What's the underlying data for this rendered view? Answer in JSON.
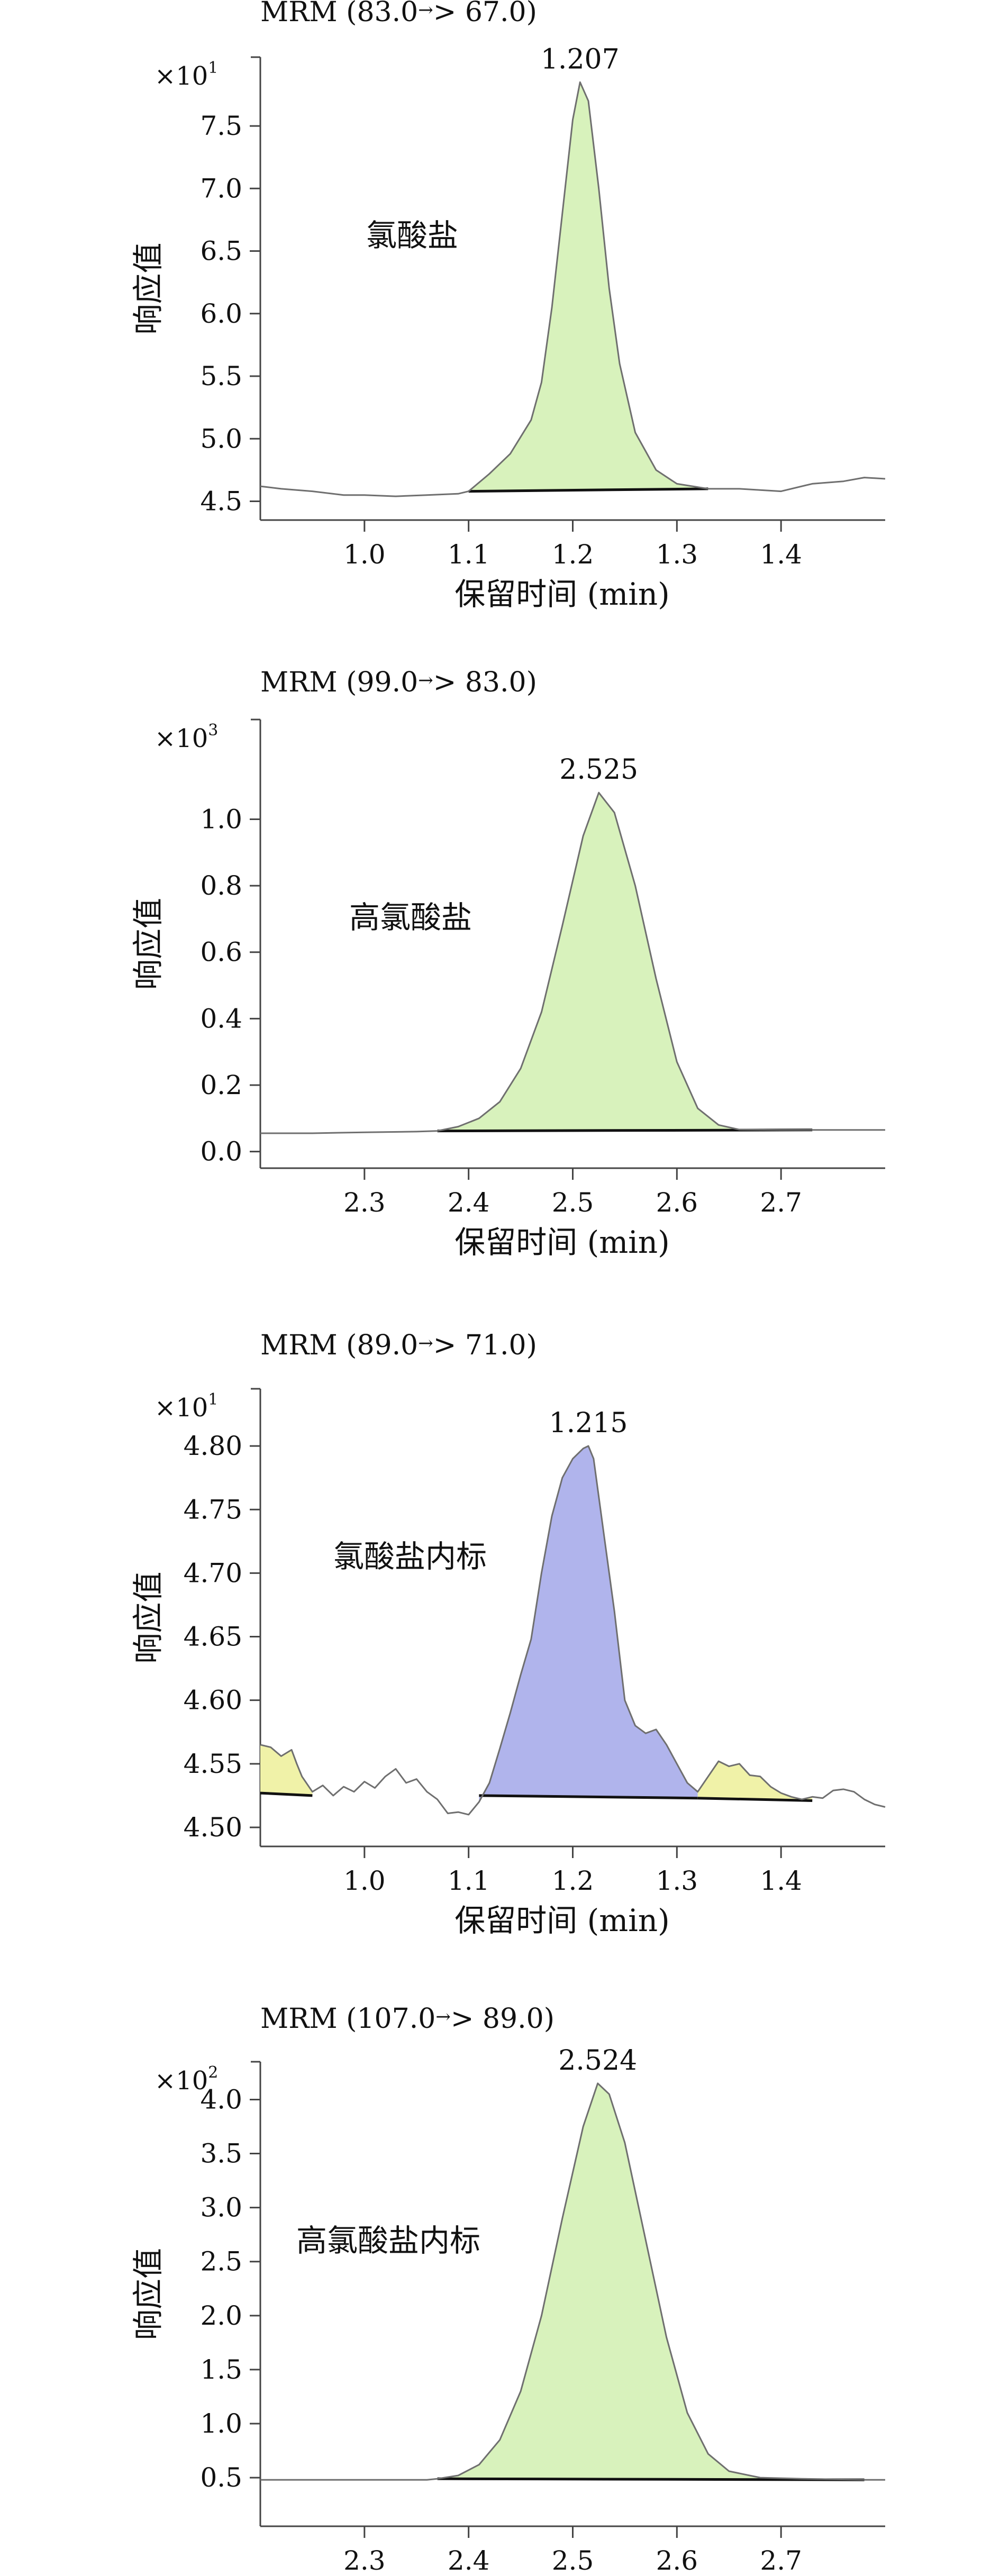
{
  "chart_data": [
    {
      "type": "line",
      "title": "MRM (83.0",
      "title_arrow": "→",
      "title_end": "> 67.0)",
      "multiplier_base": "×10",
      "multiplier_exp": "1",
      "ylabel": "响应值",
      "xlabel": "保留时间 (min)",
      "compound": "氯酸盐",
      "peak_label": "1.207",
      "xlim": [
        0.9,
        1.5
      ],
      "ylim": [
        4.35,
        8.05
      ],
      "xticks": [
        1.0,
        1.1,
        1.2,
        1.3,
        1.4
      ],
      "xtick_labels": [
        "1.0",
        "1.1",
        "1.2",
        "1.3",
        "1.4"
      ],
      "yticks": [
        4.5,
        5.0,
        5.5,
        6.0,
        6.5,
        7.0,
        7.5
      ],
      "ytick_labels": [
        "4.5",
        "5.0",
        "5.5",
        "6.0",
        "6.5",
        "7.0",
        "7.5"
      ],
      "trace": [
        [
          0.9,
          4.62
        ],
        [
          0.92,
          4.6
        ],
        [
          0.95,
          4.58
        ],
        [
          0.98,
          4.55
        ],
        [
          1.0,
          4.55
        ],
        [
          1.03,
          4.54
        ],
        [
          1.06,
          4.55
        ],
        [
          1.09,
          4.56
        ],
        [
          1.1,
          4.58
        ],
        [
          1.12,
          4.72
        ],
        [
          1.14,
          4.88
        ],
        [
          1.16,
          5.15
        ],
        [
          1.17,
          5.45
        ],
        [
          1.18,
          6.05
        ],
        [
          1.19,
          6.8
        ],
        [
          1.2,
          7.55
        ],
        [
          1.207,
          7.85
        ],
        [
          1.215,
          7.7
        ],
        [
          1.225,
          7.0
        ],
        [
          1.235,
          6.2
        ],
        [
          1.245,
          5.6
        ],
        [
          1.26,
          5.05
        ],
        [
          1.28,
          4.75
        ],
        [
          1.3,
          4.64
        ],
        [
          1.33,
          4.6
        ],
        [
          1.36,
          4.6
        ],
        [
          1.4,
          4.58
        ],
        [
          1.43,
          4.64
        ],
        [
          1.46,
          4.66
        ],
        [
          1.48,
          4.69
        ],
        [
          1.5,
          4.68
        ]
      ],
      "peaks": [
        {
          "x": [
            1.1,
            1.12,
            1.14,
            1.16,
            1.17,
            1.18,
            1.19,
            1.2,
            1.207,
            1.215,
            1.225,
            1.235,
            1.245,
            1.26,
            1.28,
            1.3,
            1.33
          ],
          "y": [
            4.58,
            4.72,
            4.88,
            5.15,
            5.45,
            6.05,
            6.8,
            7.55,
            7.85,
            7.7,
            7.0,
            6.2,
            5.6,
            5.05,
            4.75,
            4.64,
            4.6
          ],
          "baseline": [
            4.58,
            4.6
          ],
          "color": "#d8f2bc"
        }
      ]
    },
    {
      "type": "line",
      "title": "MRM (99.0",
      "title_arrow": "→",
      "title_end": "> 83.0)",
      "multiplier_base": "×10",
      "multiplier_exp": "3",
      "ylabel": "响应值",
      "xlabel": "保留时间 (min)",
      "compound": "高氯酸盐",
      "peak_label": "2.525",
      "xlim": [
        2.2,
        2.8
      ],
      "ylim": [
        -0.05,
        1.3
      ],
      "xticks": [
        2.3,
        2.4,
        2.5,
        2.6,
        2.7
      ],
      "xtick_labels": [
        "2.3",
        "2.4",
        "2.5",
        "2.6",
        "2.7"
      ],
      "yticks": [
        0.0,
        0.2,
        0.4,
        0.6,
        0.8,
        1.0
      ],
      "ytick_labels": [
        "0.0",
        "0.2",
        "0.4",
        "0.6",
        "0.8",
        "1.0"
      ],
      "trace": [
        [
          2.2,
          0.055
        ],
        [
          2.25,
          0.055
        ],
        [
          2.3,
          0.058
        ],
        [
          2.35,
          0.06
        ],
        [
          2.37,
          0.062
        ],
        [
          2.39,
          0.075
        ],
        [
          2.41,
          0.1
        ],
        [
          2.43,
          0.15
        ],
        [
          2.45,
          0.25
        ],
        [
          2.47,
          0.42
        ],
        [
          2.49,
          0.68
        ],
        [
          2.51,
          0.95
        ],
        [
          2.525,
          1.08
        ],
        [
          2.54,
          1.02
        ],
        [
          2.56,
          0.8
        ],
        [
          2.58,
          0.52
        ],
        [
          2.6,
          0.27
        ],
        [
          2.62,
          0.13
        ],
        [
          2.64,
          0.08
        ],
        [
          2.66,
          0.066
        ],
        [
          2.7,
          0.065
        ],
        [
          2.73,
          0.065
        ],
        [
          2.8,
          0.065
        ]
      ],
      "peaks": [
        {
          "x": [
            2.37,
            2.39,
            2.41,
            2.43,
            2.45,
            2.47,
            2.49,
            2.51,
            2.525,
            2.54,
            2.56,
            2.58,
            2.6,
            2.62,
            2.64,
            2.66,
            2.7,
            2.73
          ],
          "y": [
            0.062,
            0.075,
            0.1,
            0.15,
            0.25,
            0.42,
            0.68,
            0.95,
            1.08,
            1.02,
            0.8,
            0.52,
            0.27,
            0.13,
            0.08,
            0.066,
            0.065,
            0.065
          ],
          "baseline": [
            0.062,
            0.065
          ],
          "color": "#d8f2bc"
        }
      ]
    },
    {
      "type": "line",
      "title": "MRM (89.0",
      "title_arrow": "→",
      "title_end": "> 71.0)",
      "multiplier_base": "×10",
      "multiplier_exp": "1",
      "ylabel": "响应值",
      "xlabel": "保留时间 (min)",
      "compound": "氯酸盐内标",
      "peak_label": "1.215",
      "xlim": [
        0.9,
        1.5
      ],
      "ylim": [
        4.485,
        4.845
      ],
      "xticks": [
        1.0,
        1.1,
        1.2,
        1.3,
        1.4
      ],
      "xtick_labels": [
        "1.0",
        "1.1",
        "1.2",
        "1.3",
        "1.4"
      ],
      "yticks": [
        4.5,
        4.55,
        4.6,
        4.65,
        4.7,
        4.75,
        4.8
      ],
      "ytick_labels": [
        "4.50",
        "4.55",
        "4.60",
        "4.65",
        "4.70",
        "4.75",
        "4.80"
      ],
      "trace": [
        [
          0.9,
          4.565
        ],
        [
          0.91,
          4.563
        ],
        [
          0.92,
          4.556
        ],
        [
          0.93,
          4.561
        ],
        [
          0.935,
          4.55
        ],
        [
          0.94,
          4.54
        ],
        [
          0.95,
          4.528
        ],
        [
          0.96,
          4.533
        ],
        [
          0.97,
          4.525
        ],
        [
          0.98,
          4.532
        ],
        [
          0.99,
          4.528
        ],
        [
          1.0,
          4.536
        ],
        [
          1.01,
          4.531
        ],
        [
          1.02,
          4.54
        ],
        [
          1.03,
          4.546
        ],
        [
          1.04,
          4.535
        ],
        [
          1.05,
          4.538
        ],
        [
          1.06,
          4.528
        ],
        [
          1.07,
          4.522
        ],
        [
          1.08,
          4.511
        ],
        [
          1.09,
          4.512
        ],
        [
          1.1,
          4.51
        ],
        [
          1.11,
          4.52
        ],
        [
          1.12,
          4.535
        ],
        [
          1.13,
          4.562
        ],
        [
          1.14,
          4.59
        ],
        [
          1.15,
          4.62
        ],
        [
          1.16,
          4.648
        ],
        [
          1.17,
          4.7
        ],
        [
          1.18,
          4.745
        ],
        [
          1.19,
          4.775
        ],
        [
          1.2,
          4.79
        ],
        [
          1.21,
          4.798
        ],
        [
          1.215,
          4.8
        ],
        [
          1.22,
          4.79
        ],
        [
          1.225,
          4.76
        ],
        [
          1.23,
          4.73
        ],
        [
          1.24,
          4.67
        ],
        [
          1.25,
          4.6
        ],
        [
          1.26,
          4.58
        ],
        [
          1.27,
          4.574
        ],
        [
          1.28,
          4.577
        ],
        [
          1.29,
          4.565
        ],
        [
          1.3,
          4.55
        ],
        [
          1.31,
          4.535
        ],
        [
          1.32,
          4.528
        ],
        [
          1.33,
          4.54
        ],
        [
          1.34,
          4.552
        ],
        [
          1.35,
          4.548
        ],
        [
          1.36,
          4.55
        ],
        [
          1.37,
          4.541
        ],
        [
          1.38,
          4.54
        ],
        [
          1.39,
          4.532
        ],
        [
          1.4,
          4.527
        ],
        [
          1.41,
          4.524
        ],
        [
          1.42,
          4.522
        ],
        [
          1.43,
          4.524
        ],
        [
          1.44,
          4.523
        ],
        [
          1.45,
          4.529
        ],
        [
          1.46,
          4.53
        ],
        [
          1.47,
          4.528
        ],
        [
          1.48,
          4.522
        ],
        [
          1.49,
          4.518
        ],
        [
          1.5,
          4.516
        ]
      ],
      "peaks": [
        {
          "x": [
            0.9,
            0.91,
            0.92,
            0.93,
            0.935,
            0.94,
            0.95
          ],
          "y": [
            4.565,
            4.563,
            4.556,
            4.561,
            4.55,
            4.54,
            4.528
          ],
          "baseline": [
            4.527,
            4.525
          ],
          "color": "#f0f2a8"
        },
        {
          "x": [
            1.11,
            1.12,
            1.13,
            1.14,
            1.15,
            1.16,
            1.17,
            1.18,
            1.19,
            1.2,
            1.21,
            1.215,
            1.22,
            1.225,
            1.23,
            1.24,
            1.25,
            1.26,
            1.27,
            1.28,
            1.29,
            1.3,
            1.31,
            1.32
          ],
          "y": [
            4.52,
            4.535,
            4.562,
            4.59,
            4.62,
            4.648,
            4.7,
            4.745,
            4.775,
            4.79,
            4.798,
            4.8,
            4.79,
            4.76,
            4.73,
            4.67,
            4.6,
            4.58,
            4.574,
            4.577,
            4.565,
            4.55,
            4.535,
            4.528
          ],
          "baseline": [
            4.525,
            4.523
          ],
          "color": "#b0b4ec"
        },
        {
          "x": [
            1.32,
            1.33,
            1.34,
            1.35,
            1.36,
            1.37,
            1.38,
            1.39,
            1.4,
            1.41,
            1.42,
            1.43
          ],
          "y": [
            4.528,
            4.54,
            4.552,
            4.548,
            4.55,
            4.541,
            4.54,
            4.532,
            4.527,
            4.524,
            4.522,
            4.524
          ],
          "baseline": [
            4.523,
            4.521
          ],
          "color": "#f0f2a8"
        }
      ]
    },
    {
      "type": "line",
      "title": "MRM (107.0",
      "title_arrow": "→",
      "title_end": "> 89.0)",
      "multiplier_base": "×10",
      "multiplier_exp": "2",
      "ylabel": "响应值",
      "xlabel": "保留时间 (min)",
      "compound": "高氯酸盐内标",
      "peak_label": "2.524",
      "xlim": [
        2.2,
        2.8
      ],
      "ylim": [
        0.05,
        4.35
      ],
      "xticks": [
        2.3,
        2.4,
        2.5,
        2.6,
        2.7
      ],
      "xtick_labels": [
        "2.3",
        "2.4",
        "2.5",
        "2.6",
        "2.7"
      ],
      "yticks": [
        0.5,
        1.0,
        1.5,
        2.0,
        2.5,
        3.0,
        3.5,
        4.0
      ],
      "ytick_labels": [
        "0.5",
        "1.0",
        "1.5",
        "2.0",
        "2.5",
        "3.0",
        "3.5",
        "4.0"
      ],
      "trace": [
        [
          2.2,
          0.48
        ],
        [
          2.3,
          0.48
        ],
        [
          2.36,
          0.48
        ],
        [
          2.37,
          0.49
        ],
        [
          2.39,
          0.52
        ],
        [
          2.41,
          0.62
        ],
        [
          2.43,
          0.85
        ],
        [
          2.45,
          1.3
        ],
        [
          2.47,
          2.0
        ],
        [
          2.49,
          2.9
        ],
        [
          2.51,
          3.75
        ],
        [
          2.524,
          4.15
        ],
        [
          2.535,
          4.05
        ],
        [
          2.55,
          3.6
        ],
        [
          2.57,
          2.7
        ],
        [
          2.59,
          1.8
        ],
        [
          2.61,
          1.1
        ],
        [
          2.63,
          0.72
        ],
        [
          2.65,
          0.56
        ],
        [
          2.68,
          0.5
        ],
        [
          2.72,
          0.49
        ],
        [
          2.78,
          0.48
        ],
        [
          2.8,
          0.48
        ]
      ],
      "peaks": [
        {
          "x": [
            2.37,
            2.39,
            2.41,
            2.43,
            2.45,
            2.47,
            2.49,
            2.51,
            2.524,
            2.535,
            2.55,
            2.57,
            2.59,
            2.61,
            2.63,
            2.65,
            2.68,
            2.72,
            2.78
          ],
          "y": [
            0.49,
            0.52,
            0.62,
            0.85,
            1.3,
            2.0,
            2.9,
            3.75,
            4.15,
            4.05,
            3.6,
            2.7,
            1.8,
            1.1,
            0.72,
            0.56,
            0.5,
            0.49,
            0.48
          ],
          "baseline": [
            0.49,
            0.48
          ],
          "color": "#d8f2bc"
        }
      ]
    }
  ]
}
